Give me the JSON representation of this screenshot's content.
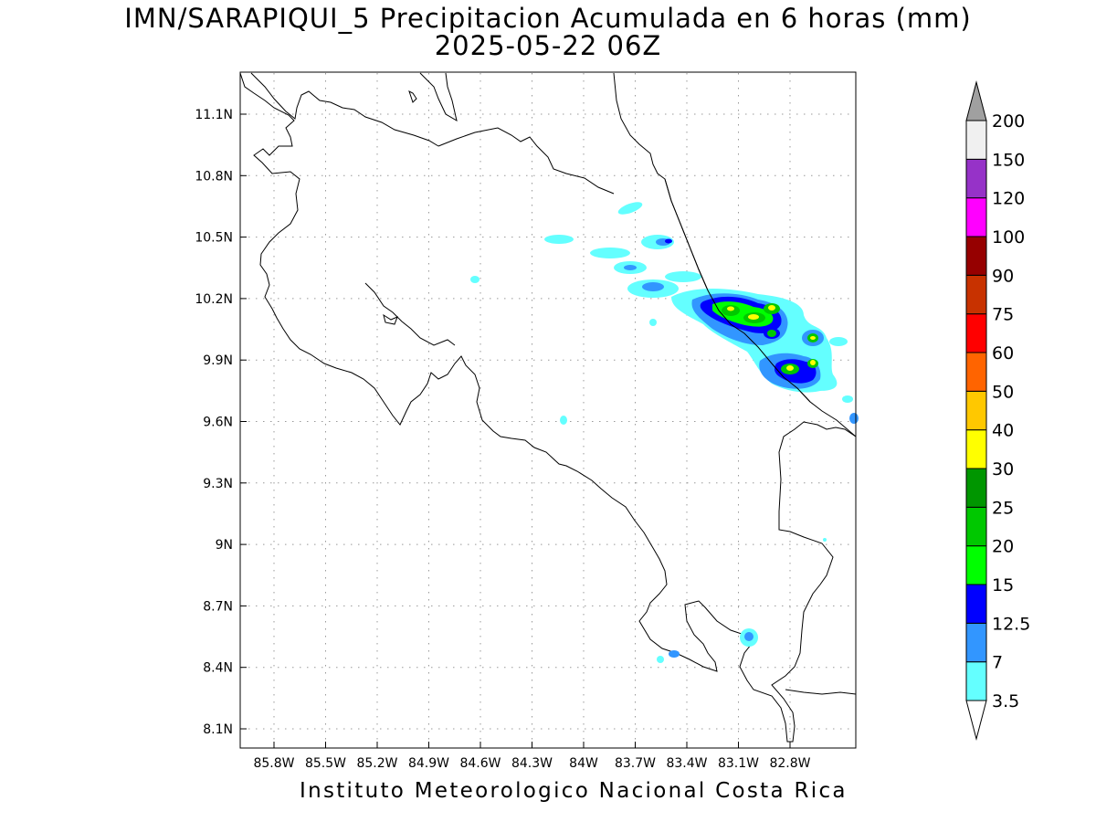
{
  "title_line1": "IMN/SARAPIQUI_5 Precipitacion Acumulada en 6 horas (mm)",
  "title_line2": "2025-05-22 06Z",
  "footer": "Instituto Meteorologico Nacional Costa Rica",
  "lon_ticks": [
    "85.8W",
    "85.5W",
    "85.2W",
    "84.9W",
    "84.6W",
    "84.3W",
    "84W",
    "83.7W",
    "83.4W",
    "83.1W",
    "82.8W"
  ],
  "lat_ticks": [
    "11.1N",
    "10.8N",
    "10.5N",
    "10.2N",
    "9.9N",
    "9.6N",
    "9.3N",
    "9N",
    "8.7N",
    "8.4N",
    "8.1N"
  ],
  "colorbar": {
    "labels": [
      "3.5",
      "7",
      "12.5",
      "15",
      "20",
      "25",
      "30",
      "40",
      "50",
      "60",
      "75",
      "90",
      "100",
      "120",
      "150",
      "200"
    ],
    "colors": [
      "#ffffff",
      "#64ffff",
      "#3296ff",
      "#0000ff",
      "#00ff00",
      "#00c800",
      "#009600",
      "#ffff00",
      "#ffc800",
      "#ff6400",
      "#ff0000",
      "#c83200",
      "#960000",
      "#ff00ff",
      "#9632c8",
      "#f0f0f0",
      "#a0a0a0"
    ]
  }
}
